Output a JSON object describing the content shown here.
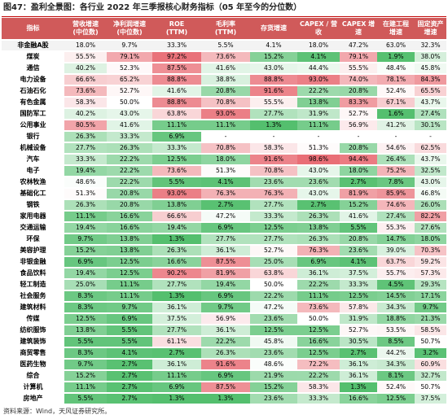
{
  "title": "图47：盈利全景图：各行业 2022 年三季报核心财务指标（05 年至今的分位数）",
  "source": "资料来源：Wind，天风证券研究所。",
  "columns": [
    "指标",
    "营收增速\n(中位数)",
    "净利润增速\n(中位数)",
    "ROE\n(TTM)",
    "毛利率\n(TTM)",
    "存货增速",
    "CAPEX / 营收",
    "CAPEX 增速",
    "在建工程\n增速",
    "固定资产\n增速"
  ],
  "colors": {
    "header_bg": "#d05a5a",
    "low_green": "#4fbd6a",
    "high_red": "#e86a72",
    "baseline_bg": "#f3f3f3"
  },
  "rows": [
    [
      "非金融A股",
      "18.0%",
      "9.7%",
      "33.3%",
      "5.5%",
      "4.1%",
      "18.0%",
      "47.2%",
      "63.0%",
      "32.3%"
    ],
    [
      "煤炭",
      "55.5%",
      "79.1%",
      "97.2%",
      "73.6%",
      "15.2%",
      "4.1%",
      "79.1%",
      "1.9%",
      "38.0%"
    ],
    [
      "通信",
      "40.2%",
      "52.3%",
      "87.5%",
      "41.6%",
      "43.0%",
      "44.4%",
      "55.5%",
      "48.4%",
      "45.8%"
    ],
    [
      "电力设备",
      "66.6%",
      "65.2%",
      "88.8%",
      "38.8%",
      "88.8%",
      "93.0%",
      "74.0%",
      "78.1%",
      "84.3%"
    ],
    [
      "石油石化",
      "73.6%",
      "52.7%",
      "41.6%",
      "20.8%",
      "91.6%",
      "22.2%",
      "20.8%",
      "52.4%",
      "65.5%"
    ],
    [
      "有色金属",
      "58.3%",
      "50.0%",
      "88.8%",
      "70.8%",
      "55.5%",
      "13.8%",
      "83.3%",
      "67.1%",
      "43.7%"
    ],
    [
      "国防军工",
      "40.2%",
      "43.0%",
      "63.8%",
      "93.0%",
      "27.7%",
      "31.9%",
      "52.7%",
      "1.6%",
      "27.4%"
    ],
    [
      "公用事业",
      "80.5%",
      "41.6%",
      "11.1%",
      "11.1%",
      "1.3%",
      "11.1%",
      "56.9%",
      "41.2%",
      "30.1%"
    ],
    [
      "银行",
      "26.3%",
      "33.3%",
      "6.9%",
      "-",
      "-",
      "-",
      "-",
      "-",
      "-"
    ],
    [
      "机械设备",
      "27.7%",
      "26.3%",
      "33.3%",
      "70.8%",
      "58.3%",
      "51.3%",
      "20.8%",
      "54.6%",
      "62.5%"
    ],
    [
      "汽车",
      "33.3%",
      "22.2%",
      "12.5%",
      "18.0%",
      "91.6%",
      "98.6%",
      "94.4%",
      "26.4%",
      "43.7%"
    ],
    [
      "电子",
      "19.4%",
      "22.2%",
      "73.6%",
      "51.3%",
      "70.8%",
      "43.0%",
      "18.0%",
      "75.2%",
      "32.5%"
    ],
    [
      "农林牧渔",
      "48.6%",
      "22.2%",
      "5.5%",
      "4.1%",
      "23.6%",
      "23.6%",
      "2.7%",
      "7.8%",
      "43.0%"
    ],
    [
      "基础化工",
      "51.3%",
      "20.8%",
      "93.0%",
      "76.3%",
      "76.3%",
      "43.0%",
      "81.9%",
      "85.9%",
      "46.8%"
    ],
    [
      "钢铁",
      "26.3%",
      "20.8%",
      "13.8%",
      "2.7%",
      "27.7%",
      "2.7%",
      "15.2%",
      "74.6%",
      "26.0%"
    ],
    [
      "家用电器",
      "11.1%",
      "16.6%",
      "66.6%",
      "47.2%",
      "33.3%",
      "26.3%",
      "41.6%",
      "27.4%",
      "82.2%"
    ],
    [
      "交通运输",
      "19.4%",
      "16.6%",
      "19.4%",
      "6.9%",
      "12.5%",
      "13.8%",
      "5.5%",
      "55.3%",
      "27.6%"
    ],
    [
      "环保",
      "9.7%",
      "13.8%",
      "1.3%",
      "27.7%",
      "27.7%",
      "26.3%",
      "20.8%",
      "14.7%",
      "18.0%"
    ],
    [
      "美容护理",
      "15.2%",
      "13.8%",
      "26.3%",
      "36.1%",
      "52.7%",
      "76.3%",
      "23.6%",
      "39.0%",
      "70.3%"
    ],
    [
      "非银金融",
      "6.9%",
      "12.5%",
      "16.6%",
      "87.5%",
      "25.0%",
      "6.9%",
      "4.1%",
      "63.7%",
      "59.2%"
    ],
    [
      "食品饮料",
      "19.4%",
      "12.5%",
      "90.2%",
      "81.9%",
      "63.8%",
      "36.1%",
      "37.5%",
      "55.7%",
      "57.3%"
    ],
    [
      "轻工制造",
      "25.0%",
      "11.1%",
      "27.7%",
      "19.4%",
      "50.0%",
      "22.2%",
      "33.3%",
      "4.5%",
      "29.3%"
    ],
    [
      "社会服务",
      "8.3%",
      "11.1%",
      "1.3%",
      "6.9%",
      "22.2%",
      "11.1%",
      "12.5%",
      "14.5%",
      "17.1%"
    ],
    [
      "建筑材料",
      "8.3%",
      "9.7%",
      "36.1%",
      "9.7%",
      "47.2%",
      "73.6%",
      "57.8%",
      "34.3%",
      "9.7%"
    ],
    [
      "传媒",
      "12.5%",
      "6.9%",
      "37.5%",
      "56.9%",
      "23.6%",
      "50.0%",
      "31.9%",
      "18.8%",
      "21.3%"
    ],
    [
      "纺织服饰",
      "13.8%",
      "5.5%",
      "27.7%",
      "36.1%",
      "12.5%",
      "12.5%",
      "52.7%",
      "53.5%",
      "58.5%"
    ],
    [
      "建筑装饰",
      "5.5%",
      "5.5%",
      "61.1%",
      "22.2%",
      "45.8%",
      "16.6%",
      "30.5%",
      "8.5%",
      "50.7%"
    ],
    [
      "商贸零售",
      "8.3%",
      "4.1%",
      "2.7%",
      "26.3%",
      "23.6%",
      "12.5%",
      "2.7%",
      "44.2%",
      "3.2%"
    ],
    [
      "医药生物",
      "9.7%",
      "2.7%",
      "36.1%",
      "91.6%",
      "48.6%",
      "72.2%",
      "36.1%",
      "34.3%",
      "60.9%"
    ],
    [
      "综合",
      "15.2%",
      "2.7%",
      "11.1%",
      "6.9%",
      "21.9%",
      "22.2%",
      "36.1%",
      "8.1%",
      "32.7%"
    ],
    [
      "计算机",
      "11.1%",
      "2.7%",
      "6.9%",
      "87.5%",
      "15.2%",
      "58.3%",
      "1.3%",
      "52.4%",
      "50.7%"
    ],
    [
      "房地产",
      "5.5%",
      "2.7%",
      "1.3%",
      "1.3%",
      "23.6%",
      "33.3%",
      "16.6%",
      "12.5%",
      "37.5%"
    ]
  ]
}
